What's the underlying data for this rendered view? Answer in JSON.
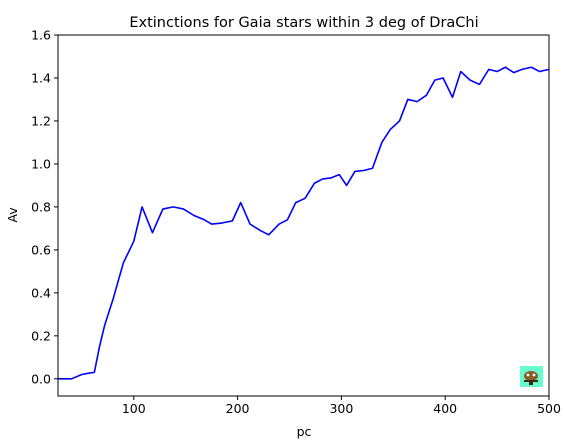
{
  "chart_data": {
    "type": "line",
    "title": "Extinctions for Gaia stars within 3 deg of DraChi",
    "xlabel": "pc",
    "ylabel": "Av",
    "xlim": [
      27,
      500
    ],
    "ylim": [
      -0.08,
      1.6
    ],
    "xticks": [
      100,
      200,
      300,
      400,
      500
    ],
    "yticks": [
      0.0,
      0.2,
      0.4,
      0.6,
      0.8,
      1.0,
      1.2,
      1.4,
      1.6
    ],
    "xtick_labels": [
      "100",
      "200",
      "300",
      "400",
      "500"
    ],
    "ytick_labels": [
      "0.0",
      "0.2",
      "0.4",
      "0.6",
      "0.8",
      "1.0",
      "1.2",
      "1.4",
      "1.6"
    ],
    "grid": false,
    "series": [
      {
        "color": "#0000ff",
        "x": [
          27,
          40,
          50,
          55,
          62,
          67,
          72,
          80,
          90,
          100,
          108,
          118,
          128,
          138,
          148,
          158,
          168,
          175,
          185,
          195,
          203,
          212,
          222,
          230,
          240,
          248,
          256,
          265,
          274,
          282,
          290,
          298,
          305,
          313,
          322,
          330,
          339,
          347,
          356,
          364,
          373,
          382,
          390,
          398,
          407,
          415,
          424,
          433,
          442,
          450,
          458,
          466,
          474,
          483,
          491,
          500
        ],
        "y": [
          0.0,
          0.0,
          0.02,
          0.025,
          0.03,
          0.15,
          0.25,
          0.37,
          0.54,
          0.64,
          0.8,
          0.68,
          0.79,
          0.8,
          0.79,
          0.76,
          0.74,
          0.72,
          0.725,
          0.735,
          0.82,
          0.72,
          0.69,
          0.67,
          0.72,
          0.74,
          0.82,
          0.84,
          0.91,
          0.93,
          0.935,
          0.95,
          0.9,
          0.965,
          0.97,
          0.98,
          1.1,
          1.16,
          1.2,
          1.3,
          1.29,
          1.32,
          1.39,
          1.4,
          1.31,
          1.43,
          1.39,
          1.37,
          1.44,
          1.43,
          1.45,
          1.425,
          1.44,
          1.45,
          1.43,
          1.44
        ]
      }
    ]
  },
  "icons": {
    "corner_badge": "chart-mascot-icon",
    "corner_badge_color": "#66ffcc"
  }
}
